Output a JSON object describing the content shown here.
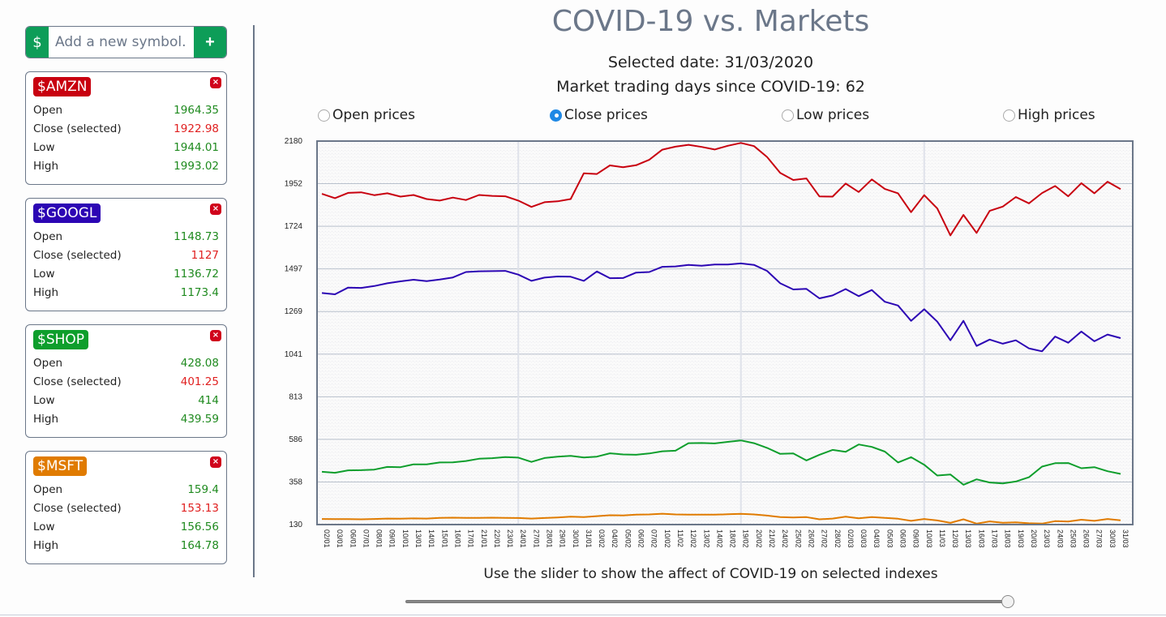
{
  "header": {
    "title": "COVID-19 vs. Markets",
    "selected_date": "Selected date: 31/03/2020",
    "trading_days": "Market trading days since COVID-19: 62"
  },
  "add_symbol": {
    "prefix": "$",
    "placeholder": "Add a new symbol...",
    "value": "",
    "button_label": "+"
  },
  "cards": [
    {
      "symbol": "$AMZN",
      "color": "#c8000f",
      "rows": [
        {
          "label": "Open",
          "value": "1964.35",
          "selected": false
        },
        {
          "label": "Close (selected)",
          "value": "1922.98",
          "selected": true
        },
        {
          "label": "Low",
          "value": "1944.01",
          "selected": false
        },
        {
          "label": "High",
          "value": "1993.02",
          "selected": false
        }
      ]
    },
    {
      "symbol": "$GOOGL",
      "color": "#2c06b4",
      "rows": [
        {
          "label": "Open",
          "value": "1148.73",
          "selected": false
        },
        {
          "label": "Close (selected)",
          "value": "1127",
          "selected": true
        },
        {
          "label": "Low",
          "value": "1136.72",
          "selected": false
        },
        {
          "label": "High",
          "value": "1173.4",
          "selected": false
        }
      ]
    },
    {
      "symbol": "$SHOP",
      "color": "#0e9e2c",
      "rows": [
        {
          "label": "Open",
          "value": "428.08",
          "selected": false
        },
        {
          "label": "Close (selected)",
          "value": "401.25",
          "selected": true
        },
        {
          "label": "Low",
          "value": "414",
          "selected": false
        },
        {
          "label": "High",
          "value": "439.59",
          "selected": false
        }
      ]
    },
    {
      "symbol": "$MSFT",
      "color": "#e07b00",
      "rows": [
        {
          "label": "Open",
          "value": "159.4",
          "selected": false
        },
        {
          "label": "Close (selected)",
          "value": "153.13",
          "selected": true
        },
        {
          "label": "Low",
          "value": "156.56",
          "selected": false
        },
        {
          "label": "High",
          "value": "164.78",
          "selected": false
        }
      ]
    }
  ],
  "close_icon": "×",
  "price_options": [
    {
      "label": "Open prices",
      "checked": false
    },
    {
      "label": "Close prices",
      "checked": true
    },
    {
      "label": "Low prices",
      "checked": false
    },
    {
      "label": "High prices",
      "checked": false
    }
  ],
  "slider": {
    "hint": "Use the slider to show the affect of COVID-19 on selected indexes",
    "min": 1,
    "max": 62,
    "value": 62
  },
  "chart_data": {
    "type": "line",
    "title": "",
    "xlabel": "",
    "ylabel": "",
    "ylim": [
      130,
      2180
    ],
    "yticks": [
      "2180",
      "1952",
      "1724",
      "1497",
      "1269",
      "1041",
      "813",
      "586",
      "358",
      "130"
    ],
    "vgrid_at": [
      "24/01",
      "19/02",
      "10/03"
    ],
    "x": [
      "02/01",
      "03/01",
      "06/01",
      "07/01",
      "08/01",
      "09/01",
      "10/01",
      "13/01",
      "14/01",
      "15/01",
      "16/01",
      "17/01",
      "21/01",
      "22/01",
      "23/01",
      "24/01",
      "27/01",
      "28/01",
      "29/01",
      "30/01",
      "31/01",
      "03/02",
      "04/02",
      "05/02",
      "06/02",
      "07/02",
      "10/02",
      "11/02",
      "12/02",
      "13/02",
      "14/02",
      "18/02",
      "19/02",
      "20/02",
      "21/02",
      "24/02",
      "25/02",
      "26/02",
      "27/02",
      "28/02",
      "02/03",
      "03/03",
      "04/03",
      "05/03",
      "06/03",
      "09/03",
      "10/03",
      "11/03",
      "12/03",
      "13/03",
      "16/03",
      "17/03",
      "18/03",
      "19/03",
      "20/03",
      "23/03",
      "24/03",
      "25/03",
      "26/03",
      "27/03",
      "30/03",
      "31/03"
    ],
    "series": [
      {
        "name": "AMZN",
        "color": "#c8000f",
        "values": [
          1898,
          1875,
          1903,
          1906,
          1891,
          1901,
          1883,
          1892,
          1870,
          1862,
          1878,
          1865,
          1892,
          1887,
          1885,
          1862,
          1828,
          1853,
          1858,
          1870,
          2008,
          2004,
          2050,
          2040,
          2051,
          2080,
          2134,
          2150,
          2160,
          2149,
          2135,
          2155,
          2170,
          2153,
          2095,
          2010,
          1972,
          1980,
          1884,
          1883,
          1953,
          1908,
          1975,
          1924,
          1901,
          1800,
          1891,
          1820,
          1676,
          1785,
          1689,
          1807,
          1830,
          1881,
          1847,
          1902,
          1940,
          1885,
          1955,
          1901,
          1963,
          1923
        ]
      },
      {
        "name": "GOOGL",
        "color": "#2c06b4",
        "values": [
          1368,
          1361,
          1397,
          1395,
          1405,
          1420,
          1430,
          1439,
          1431,
          1440,
          1451,
          1480,
          1484,
          1485,
          1486,
          1466,
          1433,
          1450,
          1456,
          1455,
          1433,
          1483,
          1447,
          1448,
          1477,
          1480,
          1508,
          1510,
          1518,
          1514,
          1520,
          1520,
          1526,
          1518,
          1486,
          1420,
          1387,
          1390,
          1339,
          1355,
          1389,
          1351,
          1384,
          1321,
          1301,
          1219,
          1281,
          1215,
          1115,
          1219,
          1085,
          1119,
          1097,
          1115,
          1072,
          1056,
          1135,
          1102,
          1162,
          1110,
          1146,
          1127
        ]
      },
      {
        "name": "SHOP",
        "color": "#0e9e2c",
        "values": [
          412,
          407,
          420,
          421,
          424,
          438,
          437,
          452,
          452,
          462,
          463,
          470,
          482,
          485,
          491,
          488,
          465,
          486,
          493,
          497,
          489,
          493,
          511,
          505,
          503,
          510,
          522,
          525,
          565,
          566,
          564,
          572,
          580,
          565,
          540,
          508,
          510,
          473,
          503,
          529,
          519,
          558,
          545,
          520,
          462,
          490,
          450,
          392,
          398,
          343,
          372,
          355,
          350,
          360,
          383,
          440,
          458,
          459,
          431,
          437,
          415,
          401
        ]
      },
      {
        "name": "MSFT",
        "color": "#e07b00",
        "values": [
          160,
          159,
          159,
          158,
          160,
          162,
          161,
          163,
          162,
          166,
          167,
          166,
          166,
          167,
          166,
          165,
          162,
          165,
          168,
          172,
          170,
          175,
          180,
          179,
          183,
          184,
          188,
          184,
          183,
          183,
          183,
          185,
          187,
          184,
          178,
          170,
          168,
          170,
          158,
          162,
          172,
          164,
          170,
          166,
          161,
          150,
          160,
          152,
          139,
          158,
          135,
          147,
          140,
          142,
          137,
          135,
          148,
          146,
          156,
          150,
          160,
          153
        ]
      }
    ]
  }
}
